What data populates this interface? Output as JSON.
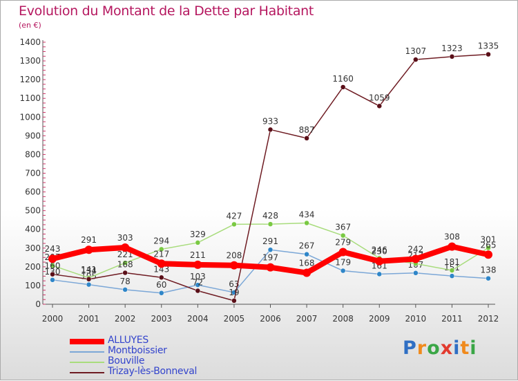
{
  "title": "Evolution du Montant de la Dette par Habitant",
  "unit": "(en €)",
  "brand": {
    "text": "Proxiti",
    "letter_colors": [
      "#2f6fc4",
      "#f08a1c",
      "#3aa646",
      "#e23a2e",
      "#2f6fc4",
      "#f08a1c",
      "#3aa646"
    ]
  },
  "chart_data": {
    "type": "line",
    "title": "Evolution du Montant de la Dette par Habitant",
    "ylabel": "(en €)",
    "xlabel": "",
    "x": [
      "2000",
      "2001",
      "2002",
      "2003",
      "2004",
      "2005",
      "2006",
      "2007",
      "2008",
      "2009",
      "2010",
      "2011",
      "2012"
    ],
    "ylim": [
      0,
      1400
    ],
    "yticks": [
      0,
      100,
      200,
      300,
      400,
      500,
      600,
      700,
      800,
      900,
      1000,
      1100,
      1200,
      1300,
      1400
    ],
    "grid": false,
    "legend_position": "bottom-left",
    "series": [
      {
        "name": "ALLUYES",
        "color": "#ff0000",
        "marker": "#ff0000",
        "emphasis": true,
        "values": [
          243,
          291,
          303,
          217,
          211,
          208,
          197,
          168,
          279,
          230,
          242,
          308,
          265
        ]
      },
      {
        "name": "Montboissier",
        "color": "#7ba7d7",
        "marker": "#2f86c8",
        "emphasis": false,
        "values": [
          130,
          105,
          78,
          60,
          103,
          63,
          291,
          267,
          179,
          161,
          167,
          151,
          138
        ]
      },
      {
        "name": "Bouville",
        "color": "#a8dc7c",
        "marker": "#7ac943",
        "emphasis": false,
        "values": [
          207,
          141,
          221,
          294,
          329,
          427,
          428,
          434,
          367,
          246,
          217,
          181,
          301
        ]
      },
      {
        "name": "Trizay-lès-Bonneval",
        "color": "#6e1b22",
        "marker": "#5a0f18",
        "emphasis": false,
        "values": [
          160,
          134,
          168,
          143,
          72,
          19,
          933,
          887,
          1160,
          1059,
          1307,
          1323,
          1335
        ]
      }
    ]
  }
}
